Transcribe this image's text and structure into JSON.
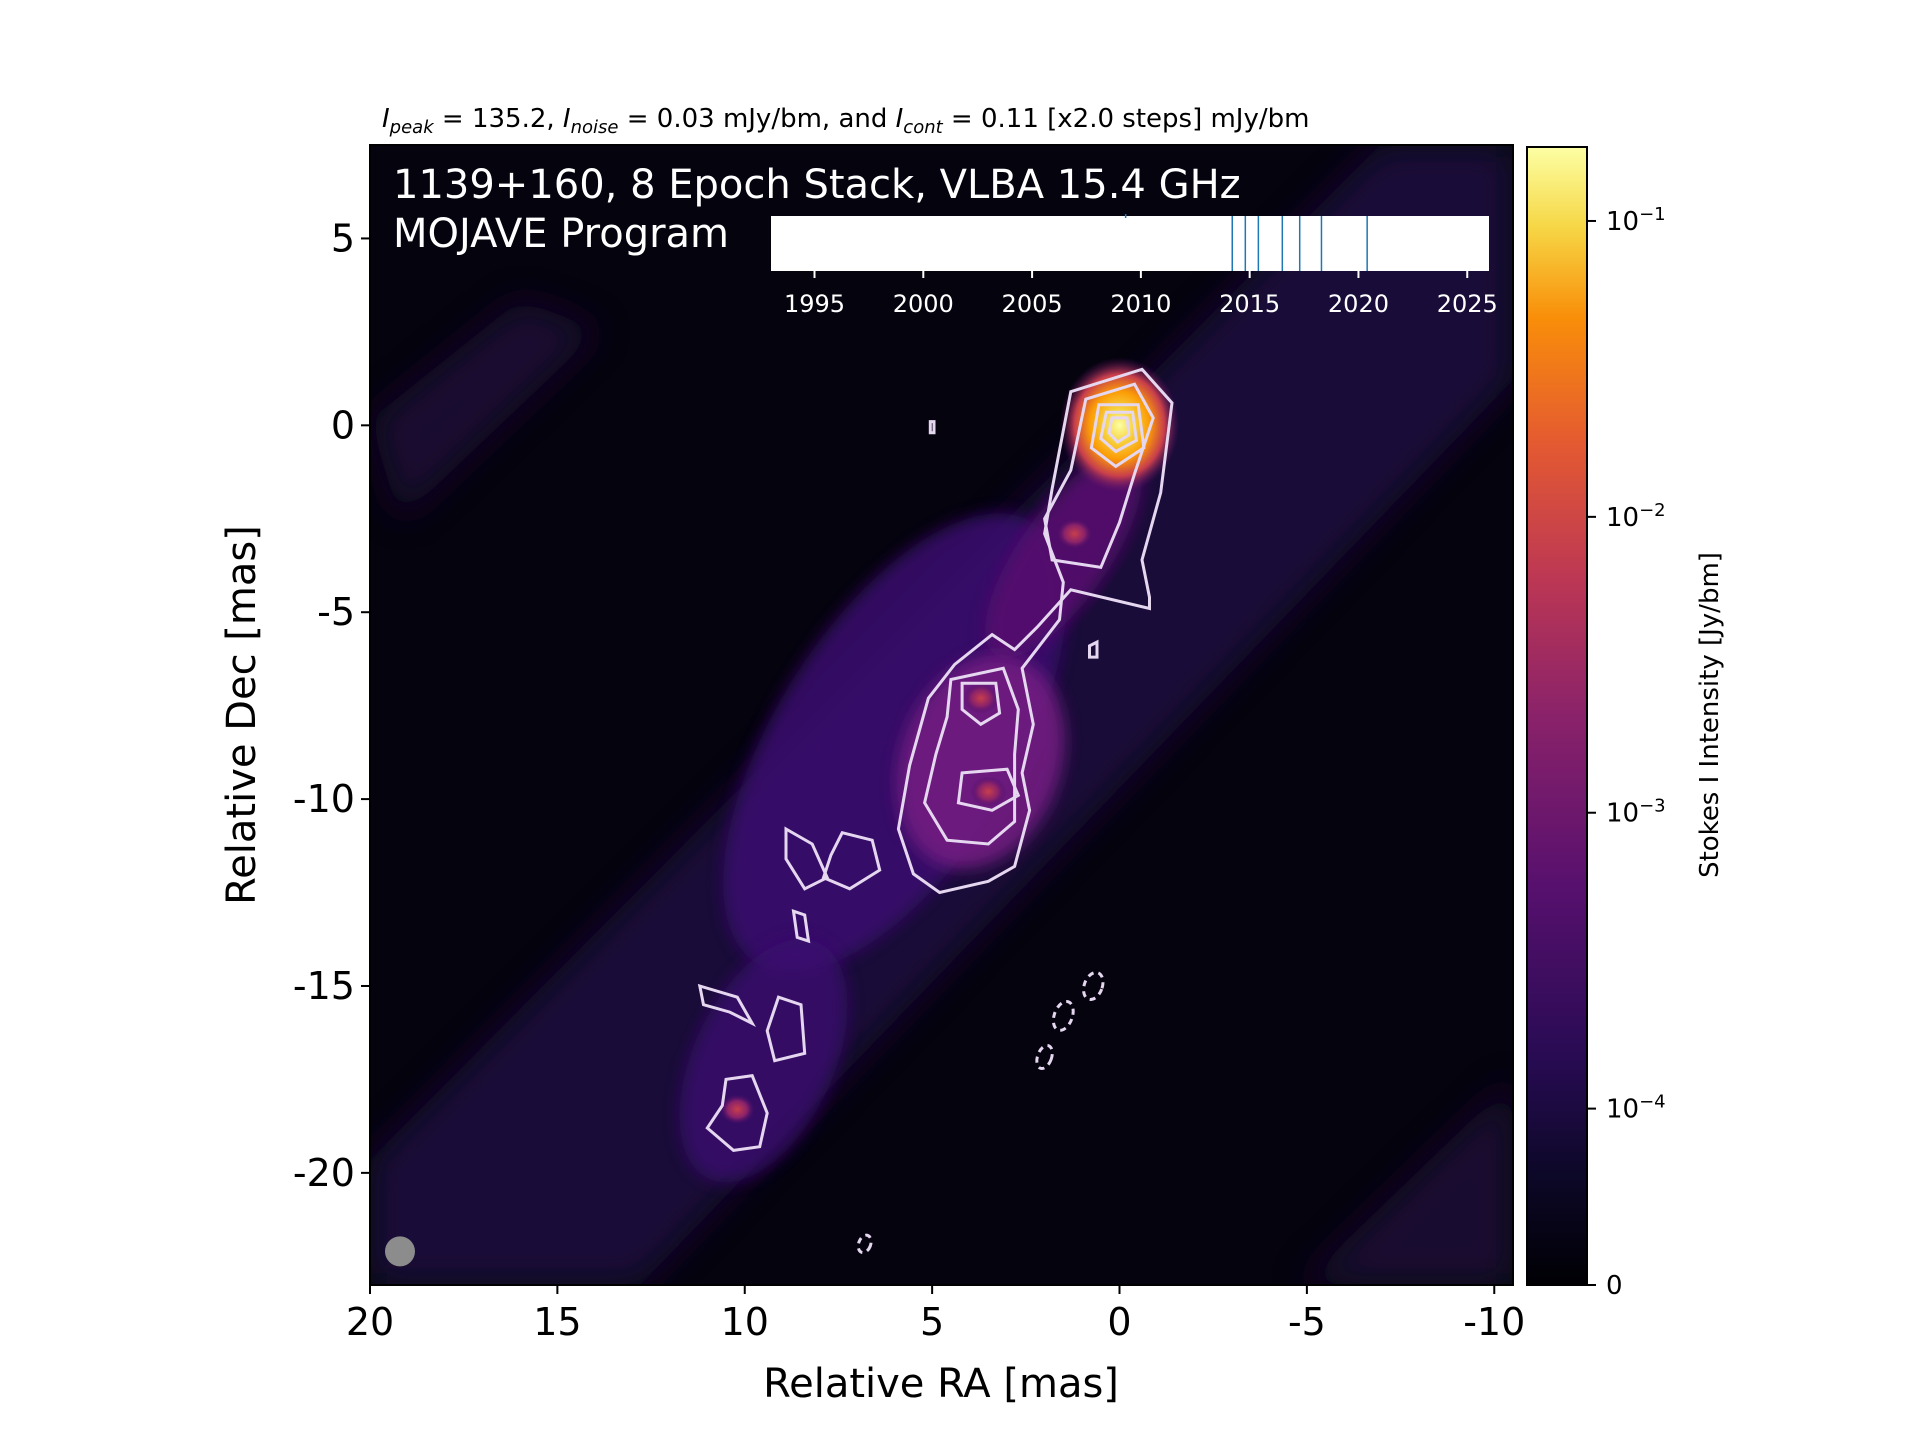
{
  "chart_data": {
    "type": "heatmap",
    "header": {
      "peak_label": "I",
      "peak_sub": "peak",
      "peak_value": " = 135.2, ",
      "noise_label": "I",
      "noise_sub": "noise",
      "noise_value": " = 0.03 mJy/bm, and ",
      "cont_label": "I",
      "cont_sub": "cont",
      "cont_value": " = 0.11 [x2.0 steps] mJy/bm"
    },
    "overlay_title_line1": "1139+160, 8 Epoch Stack, VLBA 15.4 GHz",
    "overlay_title_line2": "MOJAVE Program",
    "xlabel": "Relative RA [mas]",
    "ylabel": "Relative Dec [mas]",
    "colorbar_label": "Stokes I Intensity [Jy/bm]",
    "xlim": [
      20,
      -10.5
    ],
    "ylim": [
      -23,
      7.5
    ],
    "x_ticks": [
      {
        "value": 20,
        "label": "20"
      },
      {
        "value": 15,
        "label": "15"
      },
      {
        "value": 10,
        "label": "10"
      },
      {
        "value": 5,
        "label": "5"
      },
      {
        "value": 0,
        "label": "0"
      },
      {
        "value": -5,
        "label": "-5"
      },
      {
        "value": -10,
        "label": "-10"
      }
    ],
    "y_ticks": [
      {
        "value": 5,
        "label": "5"
      },
      {
        "value": 0,
        "label": "0"
      },
      {
        "value": -5,
        "label": "-5"
      },
      {
        "value": -10,
        "label": "-10"
      },
      {
        "value": -15,
        "label": "-15"
      },
      {
        "value": -20,
        "label": "-20"
      }
    ],
    "colorbar_ticks": [
      {
        "value": 0,
        "base": "0",
        "exp": ""
      },
      {
        "value": 0.0001,
        "base": "10",
        "exp": "−4"
      },
      {
        "value": 0.001,
        "base": "10",
        "exp": "−3"
      },
      {
        "value": 0.01,
        "base": "10",
        "exp": "−2"
      },
      {
        "value": 0.1,
        "base": "10",
        "exp": "−1"
      }
    ],
    "colorbar_scale": "symlog",
    "colormap": "inferno",
    "epoch_axis": {
      "xlim": [
        1993,
        2026
      ],
      "ticks": [
        1995,
        2000,
        2005,
        2010,
        2015,
        2020,
        2025
      ],
      "epochs": [
        2014.2,
        2014.8,
        2015.4,
        2016.5,
        2017.3,
        2018.3,
        2020.4,
        2009.3
      ]
    },
    "components": [
      {
        "ra": 0.0,
        "dec": 0.0,
        "flux_jy": 0.135
      },
      {
        "ra": 1.2,
        "dec": -2.9,
        "flux_jy": 0.004
      },
      {
        "ra": 3.7,
        "dec": -7.3,
        "flux_jy": 0.002
      },
      {
        "ra": 3.5,
        "dec": -9.8,
        "flux_jy": 0.0015
      },
      {
        "ra": 10.2,
        "dec": -18.3,
        "flux_jy": 0.0004
      }
    ],
    "beam": {
      "ra": 19.2,
      "dec": -22.1
    }
  }
}
